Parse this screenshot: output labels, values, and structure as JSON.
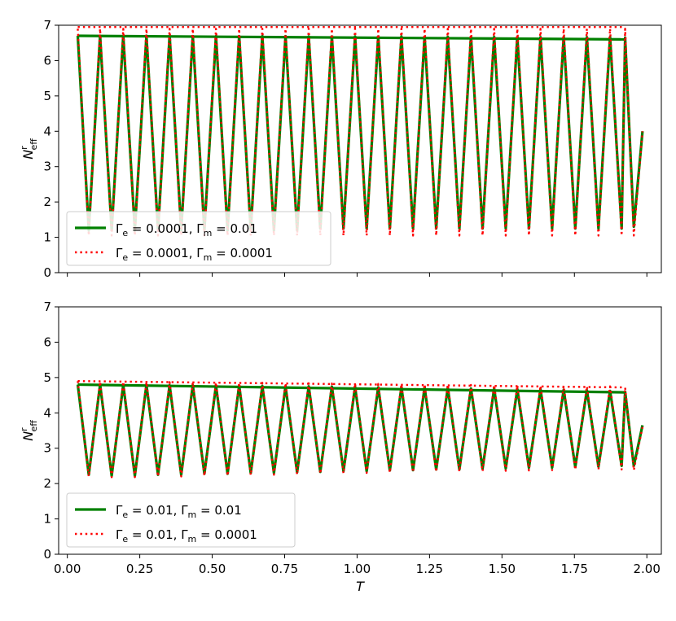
{
  "chart_data": [
    {
      "type": "line",
      "xlim": [
        -0.03,
        2.05
      ],
      "ylim": [
        0,
        7
      ],
      "xticks": [
        0.0,
        0.25,
        0.5,
        0.75,
        1.0,
        1.25,
        1.5,
        1.75,
        2.0
      ],
      "yticks": [
        0,
        1,
        2,
        3,
        4,
        5,
        6,
        7
      ],
      "xtick_labels_shown": false,
      "xlabel": "",
      "ylabel": {
        "main": "N",
        "sup": "r",
        "sub": "eff"
      },
      "legend_position": "lower-left",
      "series": [
        {
          "label_parts": [
            "Γ",
            "e",
            " = 0.0001, ",
            "Γ",
            "m",
            " = 0.01"
          ],
          "color": "#008000",
          "style": "solid",
          "points": [
            [
              0.036,
              6.7
            ],
            [
              0.074,
              1.2
            ],
            [
              0.113,
              6.7
            ],
            [
              0.153,
              1.2
            ],
            [
              0.193,
              6.7
            ],
            [
              0.233,
              1.2
            ],
            [
              0.273,
              6.7
            ],
            [
              0.313,
              1.2
            ],
            [
              0.353,
              6.7
            ],
            [
              0.393,
              1.2
            ],
            [
              0.433,
              6.69
            ],
            [
              0.473,
              1.2
            ],
            [
              0.513,
              6.69
            ],
            [
              0.553,
              1.2
            ],
            [
              0.593,
              6.69
            ],
            [
              0.633,
              1.2
            ],
            [
              0.673,
              6.69
            ],
            [
              0.713,
              1.2
            ],
            [
              0.753,
              6.69
            ],
            [
              0.793,
              1.2
            ],
            [
              0.833,
              6.68
            ],
            [
              0.873,
              1.25
            ],
            [
              0.913,
              6.68
            ],
            [
              0.953,
              1.25
            ],
            [
              0.993,
              6.68
            ],
            [
              1.033,
              1.25
            ],
            [
              1.073,
              6.68
            ],
            [
              1.113,
              1.25
            ],
            [
              1.153,
              6.68
            ],
            [
              1.193,
              1.25
            ],
            [
              1.233,
              6.67
            ],
            [
              1.273,
              1.25
            ],
            [
              1.313,
              6.67
            ],
            [
              1.353,
              1.25
            ],
            [
              1.393,
              6.67
            ],
            [
              1.433,
              1.25
            ],
            [
              1.473,
              6.67
            ],
            [
              1.513,
              1.25
            ],
            [
              1.553,
              6.66
            ],
            [
              1.593,
              1.25
            ],
            [
              1.633,
              6.66
            ],
            [
              1.673,
              1.25
            ],
            [
              1.713,
              6.66
            ],
            [
              1.753,
              1.25
            ],
            [
              1.793,
              6.66
            ],
            [
              1.833,
              1.25
            ],
            [
              1.873,
              6.66
            ],
            [
              1.913,
              1.25
            ],
            [
              1.925,
              6.65
            ],
            [
              1.955,
              1.3
            ],
            [
              1.985,
              4.0
            ]
          ],
          "envelope": [
            [
              0.036,
              6.7
            ],
            [
              1.925,
              6.6
            ]
          ]
        },
        {
          "label_parts": [
            "Γ",
            "e",
            " = 0.0001, ",
            "Γ",
            "m",
            " = 0.0001"
          ],
          "color": "#ff0000",
          "style": "dotted",
          "points": [
            [
              0.036,
              6.9
            ],
            [
              0.074,
              1.05
            ],
            [
              0.113,
              6.9
            ],
            [
              0.153,
              1.05
            ],
            [
              0.193,
              6.9
            ],
            [
              0.233,
              1.05
            ],
            [
              0.273,
              6.9
            ],
            [
              0.313,
              1.05
            ],
            [
              0.353,
              6.9
            ],
            [
              0.393,
              1.05
            ],
            [
              0.433,
              6.9
            ],
            [
              0.473,
              1.05
            ],
            [
              0.513,
              6.9
            ],
            [
              0.553,
              1.05
            ],
            [
              0.593,
              6.9
            ],
            [
              0.633,
              1.05
            ],
            [
              0.673,
              6.9
            ],
            [
              0.713,
              1.05
            ],
            [
              0.753,
              6.9
            ],
            [
              0.793,
              1.05
            ],
            [
              0.833,
              6.9
            ],
            [
              0.873,
              1.05
            ],
            [
              0.913,
              6.9
            ],
            [
              0.953,
              1.05
            ],
            [
              0.993,
              6.9
            ],
            [
              1.033,
              1.05
            ],
            [
              1.073,
              6.9
            ],
            [
              1.113,
              1.05
            ],
            [
              1.153,
              6.9
            ],
            [
              1.193,
              1.05
            ],
            [
              1.233,
              6.9
            ],
            [
              1.273,
              1.05
            ],
            [
              1.313,
              6.9
            ],
            [
              1.353,
              1.05
            ],
            [
              1.393,
              6.9
            ],
            [
              1.433,
              1.05
            ],
            [
              1.473,
              6.9
            ],
            [
              1.513,
              1.05
            ],
            [
              1.553,
              6.9
            ],
            [
              1.593,
              1.05
            ],
            [
              1.633,
              6.9
            ],
            [
              1.673,
              1.05
            ],
            [
              1.713,
              6.9
            ],
            [
              1.753,
              1.05
            ],
            [
              1.793,
              6.9
            ],
            [
              1.833,
              1.05
            ],
            [
              1.873,
              6.9
            ],
            [
              1.913,
              1.05
            ],
            [
              1.925,
              6.9
            ],
            [
              1.955,
              1.05
            ],
            [
              1.985,
              4.0
            ]
          ],
          "envelope": [
            [
              0.036,
              6.95
            ],
            [
              1.925,
              6.95
            ]
          ]
        }
      ]
    },
    {
      "type": "line",
      "xlim": [
        -0.03,
        2.05
      ],
      "ylim": [
        0,
        7
      ],
      "xticks": [
        0.0,
        0.25,
        0.5,
        0.75,
        1.0,
        1.25,
        1.5,
        1.75,
        2.0
      ],
      "xtick_labels": [
        "0.00",
        "0.25",
        "0.50",
        "0.75",
        "1.00",
        "1.25",
        "1.50",
        "1.75",
        "2.00"
      ],
      "yticks": [
        0,
        1,
        2,
        3,
        4,
        5,
        6,
        7
      ],
      "xtick_labels_shown": true,
      "xlabel": "T",
      "ylabel": {
        "main": "N",
        "sup": "r",
        "sub": "eff"
      },
      "legend_position": "lower-left",
      "series": [
        {
          "label_parts": [
            "Γ",
            "e",
            " = 0.01, ",
            "Γ",
            "m",
            " = 0.01"
          ],
          "color": "#008000",
          "style": "solid",
          "points": [
            [
              0.036,
              4.8
            ],
            [
              0.074,
              2.25
            ],
            [
              0.113,
              4.8
            ],
            [
              0.153,
              2.22
            ],
            [
              0.193,
              4.79
            ],
            [
              0.233,
              2.22
            ],
            [
              0.273,
              4.79
            ],
            [
              0.313,
              2.25
            ],
            [
              0.353,
              4.78
            ],
            [
              0.393,
              2.25
            ],
            [
              0.433,
              4.78
            ],
            [
              0.473,
              2.28
            ],
            [
              0.513,
              4.77
            ],
            [
              0.553,
              2.28
            ],
            [
              0.593,
              4.77
            ],
            [
              0.633,
              2.3
            ],
            [
              0.673,
              4.76
            ],
            [
              0.713,
              2.3
            ],
            [
              0.753,
              4.75
            ],
            [
              0.793,
              2.32
            ],
            [
              0.833,
              4.75
            ],
            [
              0.873,
              2.33
            ],
            [
              0.913,
              4.74
            ],
            [
              0.953,
              2.35
            ],
            [
              0.993,
              4.73
            ],
            [
              1.033,
              2.35
            ],
            [
              1.073,
              4.72
            ],
            [
              1.113,
              2.37
            ],
            [
              1.153,
              4.72
            ],
            [
              1.193,
              2.38
            ],
            [
              1.233,
              4.71
            ],
            [
              1.273,
              2.4
            ],
            [
              1.313,
              4.7
            ],
            [
              1.353,
              2.4
            ],
            [
              1.393,
              4.69
            ],
            [
              1.433,
              2.42
            ],
            [
              1.473,
              4.68
            ],
            [
              1.513,
              2.43
            ],
            [
              1.553,
              4.67
            ],
            [
              1.593,
              2.45
            ],
            [
              1.633,
              4.66
            ],
            [
              1.673,
              2.45
            ],
            [
              1.713,
              4.65
            ],
            [
              1.753,
              2.47
            ],
            [
              1.793,
              4.64
            ],
            [
              1.833,
              2.48
            ],
            [
              1.873,
              4.62
            ],
            [
              1.913,
              2.5
            ],
            [
              1.925,
              4.6
            ],
            [
              1.955,
              2.5
            ],
            [
              1.985,
              3.65
            ]
          ],
          "envelope": [
            [
              0.036,
              4.8
            ],
            [
              1.925,
              4.58
            ]
          ]
        },
        {
          "label_parts": [
            "Γ",
            "e",
            " = 0.01, ",
            "Γ",
            "m",
            " = 0.0001"
          ],
          "color": "#ff0000",
          "style": "dotted",
          "points": [
            [
              0.036,
              4.9
            ],
            [
              0.074,
              2.2
            ],
            [
              0.113,
              4.88
            ],
            [
              0.153,
              2.18
            ],
            [
              0.193,
              4.88
            ],
            [
              0.233,
              2.18
            ],
            [
              0.273,
              4.87
            ],
            [
              0.313,
              2.2
            ],
            [
              0.353,
              4.87
            ],
            [
              0.393,
              2.2
            ],
            [
              0.433,
              4.86
            ],
            [
              0.473,
              2.22
            ],
            [
              0.513,
              4.86
            ],
            [
              0.553,
              2.22
            ],
            [
              0.593,
              4.85
            ],
            [
              0.633,
              2.24
            ],
            [
              0.673,
              4.85
            ],
            [
              0.713,
              2.25
            ],
            [
              0.753,
              4.84
            ],
            [
              0.793,
              2.26
            ],
            [
              0.833,
              4.84
            ],
            [
              0.873,
              2.28
            ],
            [
              0.913,
              4.83
            ],
            [
              0.953,
              2.29
            ],
            [
              0.993,
              4.83
            ],
            [
              1.033,
              2.3
            ],
            [
              1.073,
              4.82
            ],
            [
              1.113,
              2.31
            ],
            [
              1.153,
              4.81
            ],
            [
              1.193,
              2.32
            ],
            [
              1.233,
              4.81
            ],
            [
              1.273,
              2.33
            ],
            [
              1.313,
              4.8
            ],
            [
              1.353,
              2.34
            ],
            [
              1.393,
              4.79
            ],
            [
              1.433,
              2.35
            ],
            [
              1.473,
              4.79
            ],
            [
              1.513,
              2.36
            ],
            [
              1.553,
              4.78
            ],
            [
              1.593,
              2.37
            ],
            [
              1.633,
              4.77
            ],
            [
              1.673,
              2.38
            ],
            [
              1.713,
              4.76
            ],
            [
              1.753,
              2.39
            ],
            [
              1.793,
              4.75
            ],
            [
              1.833,
              2.4
            ],
            [
              1.873,
              4.75
            ],
            [
              1.913,
              2.4
            ],
            [
              1.925,
              4.72
            ],
            [
              1.955,
              2.38
            ],
            [
              1.985,
              3.6
            ]
          ],
          "envelope": [
            [
              0.036,
              4.9
            ],
            [
              1.925,
              4.72
            ]
          ]
        }
      ]
    }
  ]
}
